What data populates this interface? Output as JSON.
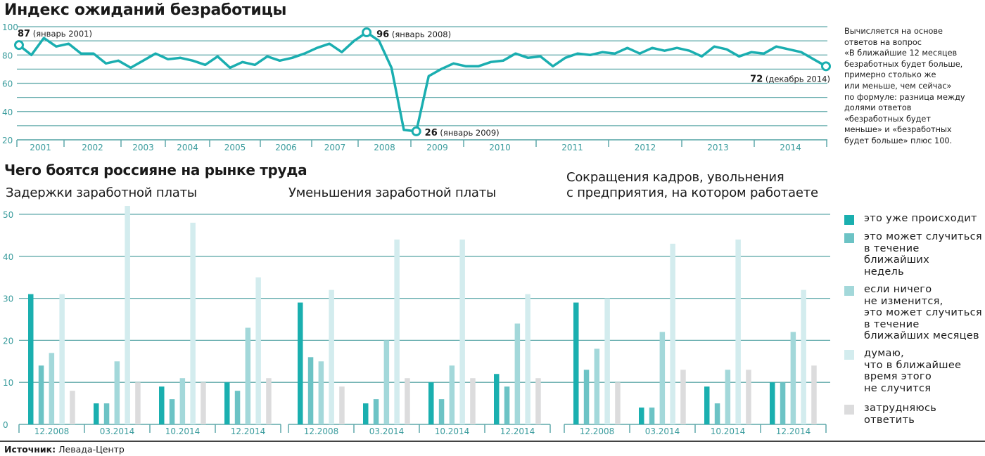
{
  "title": "Индекс ожиданий безработицы",
  "note": "Вычисляется на основе\nответов на вопрос\n«В ближайшие 12 месяцев\nбезработных будет больше,\nпримерно столько же\nили меньше, чем сейчас»\nпо формуле: разница между\nдолями ответов\n«безработных будет\nменьше» и «безработных\nбудет больше» плюс 100.",
  "colors": {
    "line": "#1aaeb0",
    "grid": "#5fa9aa",
    "axis_text": "#3a9c9d",
    "bars": [
      "#1aafaf",
      "#6cc3c5",
      "#a3d8da",
      "#d3ecee",
      "#dcdcdd"
    ]
  },
  "section_title": "Чего боятся россияне на рынке труда",
  "legend": [
    "это уже происходит",
    "это может случиться\nв течение\nближайших\nнедель",
    "если ничего\nне изменится,\nэто может случиться\nв течение\nближайших месяцев",
    "думаю,\nчто в ближайшее\nвремя этого\nне случится",
    "затрудняюсь\nответить"
  ],
  "footer": {
    "label": "Источник:",
    "source": "Левада-Центр"
  },
  "chart_data": [
    {
      "type": "line",
      "title": "Индекс ожиданий безработицы",
      "ylim": [
        20,
        100
      ],
      "yticks": [
        "20",
        "40",
        "60",
        "80",
        "100"
      ],
      "years": [
        "2001",
        "2002",
        "2003",
        "2004",
        "2005",
        "2006",
        "2007",
        "2008",
        "2009",
        "2010",
        "2011",
        "2012",
        "2013",
        "2014"
      ],
      "values": [
        87,
        80,
        92,
        86,
        88,
        81,
        81,
        74,
        76,
        71,
        76,
        81,
        77,
        78,
        76,
        73,
        79,
        71,
        75,
        73,
        79,
        76,
        78,
        81,
        85,
        88,
        82,
        90,
        96,
        90,
        71,
        27,
        26,
        65,
        70,
        74,
        72,
        72,
        75,
        76,
        81,
        78,
        79,
        72,
        78,
        81,
        80,
        82,
        81,
        85,
        81,
        85,
        83,
        85,
        83,
        79,
        86,
        84,
        79,
        82,
        81,
        86,
        84,
        82,
        77,
        72
      ],
      "annotations": [
        {
          "index": 0,
          "value": "87",
          "label": "(январь 2001)"
        },
        {
          "index": 28,
          "value": "96",
          "label": "(январь 2008)"
        },
        {
          "index": 32,
          "value": "26",
          "label": "(январь 2009)"
        },
        {
          "index": 65,
          "value": "72",
          "label": "(декабрь 2014)"
        }
      ],
      "grid": true
    },
    {
      "type": "bar",
      "title": "Задержки заработной платы",
      "categories": [
        "12.2008",
        "03.2014",
        "10.2014",
        "12.2014"
      ],
      "ylim": [
        0,
        50
      ],
      "yticks": [
        "0",
        "10",
        "20",
        "30",
        "40",
        "50"
      ],
      "series": [
        {
          "name": "это уже происходит",
          "values": [
            31,
            5,
            9,
            10
          ]
        },
        {
          "name": "это может случиться в течение ближайших недель",
          "values": [
            14,
            5,
            6,
            8
          ]
        },
        {
          "name": "если ничего не изменится, это может случиться в течение ближайших месяцев",
          "values": [
            17,
            15,
            11,
            23
          ]
        },
        {
          "name": "думаю, что в ближайшее время этого не случится",
          "values": [
            31,
            52,
            48,
            35
          ]
        },
        {
          "name": "затрудняюсь ответить",
          "values": [
            8,
            10,
            10,
            11
          ]
        }
      ]
    },
    {
      "type": "bar",
      "title": "Уменьшения заработной платы",
      "categories": [
        "12.2008",
        "03.2014",
        "10.2014",
        "12.2014"
      ],
      "ylim": [
        0,
        50
      ],
      "series": [
        {
          "name": "это уже происходит",
          "values": [
            29,
            5,
            10,
            12
          ]
        },
        {
          "name": "это может случиться в течение ближайших недель",
          "values": [
            16,
            6,
            6,
            9
          ]
        },
        {
          "name": "если ничего не изменится, это может случиться в течение ближайших месяцев",
          "values": [
            15,
            20,
            14,
            24
          ]
        },
        {
          "name": "думаю, что в ближайшее время этого не случится",
          "values": [
            32,
            44,
            44,
            31
          ]
        },
        {
          "name": "затрудняюсь ответить",
          "values": [
            9,
            11,
            11,
            11
          ]
        }
      ]
    },
    {
      "type": "bar",
      "title": "Сокращения кадров, увольнения\nс предприятия, на котором работаете",
      "categories": [
        "12.2008",
        "03.2014",
        "10.2014",
        "12.2014"
      ],
      "ylim": [
        0,
        50
      ],
      "series": [
        {
          "name": "это уже происходит",
          "values": [
            29,
            4,
            9,
            10
          ]
        },
        {
          "name": "это может случиться в течение ближайших недель",
          "values": [
            13,
            4,
            5,
            10
          ]
        },
        {
          "name": "если ничего не изменится, это может случиться в течение ближайших месяцев",
          "values": [
            18,
            22,
            13,
            22
          ]
        },
        {
          "name": "думаю, что в ближайшее время этого не случится",
          "values": [
            30,
            43,
            44,
            32
          ]
        },
        {
          "name": "затрудняюсь ответить",
          "values": [
            10,
            13,
            13,
            14
          ]
        }
      ]
    }
  ]
}
